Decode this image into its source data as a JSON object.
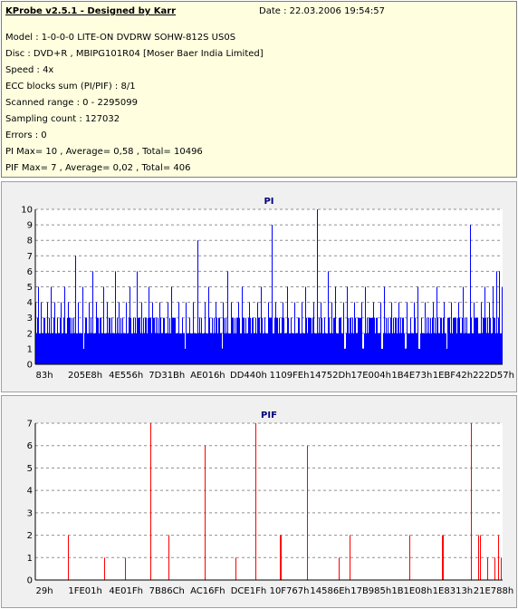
{
  "info": {
    "title": "KProbe v2.5.1 - Designed by Karr",
    "date": "Date : 22.03.2006 19:54:57",
    "lines": [
      "Model : 1-0-0-0 LITE-ON DVDRW SOHW-812S  US0S",
      "Disc : DVD+R , MBIPG101R04 [Moser Baer India Limited]",
      "Speed : 4x",
      "ECC blocks sum (PI/PIF) : 8/1",
      "Scanned range : 0 - 2295099",
      "Sampling count : 127032",
      "Errors : 0",
      "PI Max= 10 , Average= 0,58 , Total= 10496",
      "PIF Max= 7 , Average= 0,02 , Total= 406"
    ]
  },
  "chart_data": [
    {
      "type": "bar",
      "title": "PI",
      "xlabel": "",
      "ylabel": "",
      "ylim": [
        0,
        10
      ],
      "yticks": [
        0,
        1,
        2,
        3,
        4,
        5,
        6,
        7,
        8,
        9,
        10
      ],
      "xtick_labels": [
        "83h",
        "205E8h",
        "4E556h",
        "7D31Bh",
        "AE016h",
        "DD440h",
        "1109FEh",
        "14752Dh",
        "17E004h",
        "1B4E73h",
        "1EBF42h",
        "222D57h"
      ],
      "grid": "horizontal-dashed",
      "color": "#0000ff",
      "baseline": 2,
      "peaks": [
        {
          "pos": 0.0,
          "value": 4
        },
        {
          "pos": 0.005,
          "value": 5
        },
        {
          "pos": 0.012,
          "value": 4
        },
        {
          "pos": 0.018,
          "value": 3
        },
        {
          "pos": 0.025,
          "value": 4
        },
        {
          "pos": 0.032,
          "value": 5
        },
        {
          "pos": 0.04,
          "value": 4
        },
        {
          "pos": 0.047,
          "value": 3
        },
        {
          "pos": 0.055,
          "value": 4
        },
        {
          "pos": 0.062,
          "value": 5
        },
        {
          "pos": 0.07,
          "value": 4
        },
        {
          "pos": 0.078,
          "value": 3
        },
        {
          "pos": 0.085,
          "value": 7
        },
        {
          "pos": 0.092,
          "value": 4
        },
        {
          "pos": 0.1,
          "value": 5
        },
        {
          "pos": 0.108,
          "value": 3
        },
        {
          "pos": 0.115,
          "value": 4
        },
        {
          "pos": 0.122,
          "value": 6
        },
        {
          "pos": 0.13,
          "value": 4
        },
        {
          "pos": 0.138,
          "value": 3
        },
        {
          "pos": 0.146,
          "value": 5
        },
        {
          "pos": 0.154,
          "value": 4
        },
        {
          "pos": 0.162,
          "value": 3
        },
        {
          "pos": 0.17,
          "value": 6
        },
        {
          "pos": 0.178,
          "value": 4
        },
        {
          "pos": 0.186,
          "value": 3
        },
        {
          "pos": 0.194,
          "value": 4
        },
        {
          "pos": 0.202,
          "value": 5
        },
        {
          "pos": 0.21,
          "value": 3
        },
        {
          "pos": 0.218,
          "value": 6
        },
        {
          "pos": 0.226,
          "value": 4
        },
        {
          "pos": 0.234,
          "value": 3
        },
        {
          "pos": 0.242,
          "value": 5
        },
        {
          "pos": 0.25,
          "value": 4
        },
        {
          "pos": 0.258,
          "value": 3
        },
        {
          "pos": 0.266,
          "value": 4
        },
        {
          "pos": 0.274,
          "value": 3
        },
        {
          "pos": 0.282,
          "value": 4
        },
        {
          "pos": 0.29,
          "value": 5
        },
        {
          "pos": 0.298,
          "value": 3
        },
        {
          "pos": 0.306,
          "value": 4
        },
        {
          "pos": 0.314,
          "value": 3
        },
        {
          "pos": 0.322,
          "value": 4
        },
        {
          "pos": 0.33,
          "value": 3
        },
        {
          "pos": 0.338,
          "value": 4
        },
        {
          "pos": 0.346,
          "value": 8
        },
        {
          "pos": 0.354,
          "value": 3
        },
        {
          "pos": 0.362,
          "value": 4
        },
        {
          "pos": 0.37,
          "value": 5
        },
        {
          "pos": 0.378,
          "value": 3
        },
        {
          "pos": 0.386,
          "value": 4
        },
        {
          "pos": 0.394,
          "value": 3
        },
        {
          "pos": 0.402,
          "value": 4
        },
        {
          "pos": 0.41,
          "value": 6
        },
        {
          "pos": 0.418,
          "value": 4
        },
        {
          "pos": 0.426,
          "value": 3
        },
        {
          "pos": 0.434,
          "value": 4
        },
        {
          "pos": 0.442,
          "value": 5
        },
        {
          "pos": 0.45,
          "value": 3
        },
        {
          "pos": 0.458,
          "value": 4
        },
        {
          "pos": 0.466,
          "value": 3
        },
        {
          "pos": 0.474,
          "value": 4
        },
        {
          "pos": 0.482,
          "value": 5
        },
        {
          "pos": 0.49,
          "value": 3
        },
        {
          "pos": 0.498,
          "value": 4
        },
        {
          "pos": 0.506,
          "value": 9
        },
        {
          "pos": 0.514,
          "value": 4
        },
        {
          "pos": 0.522,
          "value": 3
        },
        {
          "pos": 0.53,
          "value": 4
        },
        {
          "pos": 0.538,
          "value": 5
        },
        {
          "pos": 0.546,
          "value": 3
        },
        {
          "pos": 0.554,
          "value": 4
        },
        {
          "pos": 0.562,
          "value": 3
        },
        {
          "pos": 0.57,
          "value": 4
        },
        {
          "pos": 0.578,
          "value": 5
        },
        {
          "pos": 0.586,
          "value": 3
        },
        {
          "pos": 0.594,
          "value": 4
        },
        {
          "pos": 0.602,
          "value": 10
        },
        {
          "pos": 0.61,
          "value": 4
        },
        {
          "pos": 0.618,
          "value": 3
        },
        {
          "pos": 0.626,
          "value": 6
        },
        {
          "pos": 0.634,
          "value": 4
        },
        {
          "pos": 0.642,
          "value": 5
        },
        {
          "pos": 0.65,
          "value": 3
        },
        {
          "pos": 0.658,
          "value": 4
        },
        {
          "pos": 0.666,
          "value": 5
        },
        {
          "pos": 0.674,
          "value": 3
        },
        {
          "pos": 0.682,
          "value": 4
        },
        {
          "pos": 0.69,
          "value": 3
        },
        {
          "pos": 0.698,
          "value": 4
        },
        {
          "pos": 0.706,
          "value": 5
        },
        {
          "pos": 0.714,
          "value": 3
        },
        {
          "pos": 0.722,
          "value": 4
        },
        {
          "pos": 0.73,
          "value": 3
        },
        {
          "pos": 0.738,
          "value": 4
        },
        {
          "pos": 0.746,
          "value": 5
        },
        {
          "pos": 0.754,
          "value": 3
        },
        {
          "pos": 0.762,
          "value": 4
        },
        {
          "pos": 0.77,
          "value": 3
        },
        {
          "pos": 0.778,
          "value": 4
        },
        {
          "pos": 0.786,
          "value": 3
        },
        {
          "pos": 0.794,
          "value": 4
        },
        {
          "pos": 0.802,
          "value": 3
        },
        {
          "pos": 0.81,
          "value": 4
        },
        {
          "pos": 0.818,
          "value": 5
        },
        {
          "pos": 0.826,
          "value": 3
        },
        {
          "pos": 0.834,
          "value": 4
        },
        {
          "pos": 0.842,
          "value": 3
        },
        {
          "pos": 0.85,
          "value": 4
        },
        {
          "pos": 0.858,
          "value": 5
        },
        {
          "pos": 0.866,
          "value": 3
        },
        {
          "pos": 0.874,
          "value": 4
        },
        {
          "pos": 0.882,
          "value": 3
        },
        {
          "pos": 0.89,
          "value": 4
        },
        {
          "pos": 0.898,
          "value": 3
        },
        {
          "pos": 0.906,
          "value": 4
        },
        {
          "pos": 0.914,
          "value": 5
        },
        {
          "pos": 0.922,
          "value": 3
        },
        {
          "pos": 0.93,
          "value": 9
        },
        {
          "pos": 0.938,
          "value": 4
        },
        {
          "pos": 0.946,
          "value": 3
        },
        {
          "pos": 0.954,
          "value": 4
        },
        {
          "pos": 0.962,
          "value": 5
        },
        {
          "pos": 0.97,
          "value": 4
        },
        {
          "pos": 0.978,
          "value": 5
        },
        {
          "pos": 0.986,
          "value": 6
        },
        {
          "pos": 0.992,
          "value": 6
        },
        {
          "pos": 0.998,
          "value": 5
        }
      ],
      "dips": [
        0.1,
        0.32,
        0.4,
        0.66,
        0.7,
        0.74,
        0.79,
        0.82,
        0.88
      ]
    },
    {
      "type": "bar",
      "title": "PIF",
      "xlabel": "",
      "ylabel": "",
      "ylim": [
        0,
        7
      ],
      "yticks": [
        0,
        1,
        2,
        3,
        4,
        5,
        6,
        7
      ],
      "xtick_labels": [
        "29h",
        "1FE01h",
        "4E01Fh",
        "7B86Ch",
        "AC16Fh",
        "DCE1Fh",
        "10F767h",
        "14586Eh",
        "17B985h",
        "1B1E08h",
        "1E8313h",
        "21E788h"
      ],
      "grid": "horizontal-dashed",
      "color": "#ff0000",
      "bars": [
        {
          "pos": 0.07,
          "value": 2
        },
        {
          "pos": 0.148,
          "value": 1
        },
        {
          "pos": 0.192,
          "value": 1
        },
        {
          "pos": 0.247,
          "value": 7
        },
        {
          "pos": 0.284,
          "value": 2
        },
        {
          "pos": 0.362,
          "value": 6
        },
        {
          "pos": 0.428,
          "value": 1
        },
        {
          "pos": 0.47,
          "value": 7
        },
        {
          "pos": 0.524,
          "value": 2
        },
        {
          "pos": 0.526,
          "value": 2
        },
        {
          "pos": 0.582,
          "value": 6
        },
        {
          "pos": 0.649,
          "value": 1
        },
        {
          "pos": 0.672,
          "value": 2
        },
        {
          "pos": 0.8,
          "value": 2
        },
        {
          "pos": 0.87,
          "value": 2
        },
        {
          "pos": 0.873,
          "value": 2
        },
        {
          "pos": 0.932,
          "value": 7
        },
        {
          "pos": 0.948,
          "value": 2
        },
        {
          "pos": 0.952,
          "value": 2
        },
        {
          "pos": 0.968,
          "value": 1
        },
        {
          "pos": 0.982,
          "value": 1
        },
        {
          "pos": 0.99,
          "value": 2
        },
        {
          "pos": 0.996,
          "value": 1
        }
      ]
    }
  ]
}
